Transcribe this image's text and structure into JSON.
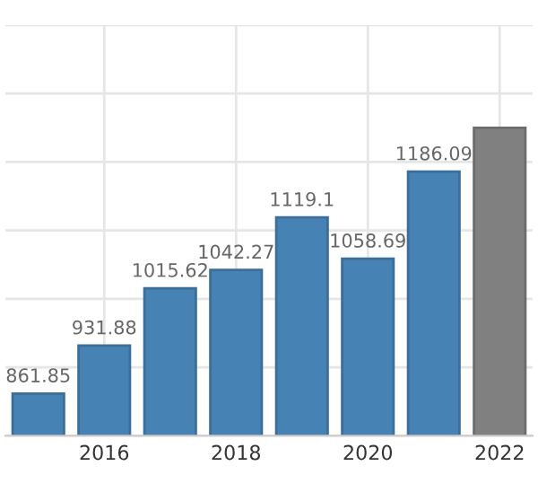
{
  "chart_data": {
    "type": "bar",
    "x": [
      2015,
      2016,
      2017,
      2018,
      2019,
      2020,
      2021,
      2022
    ],
    "values": [
      861.85,
      931.88,
      1015.62,
      1042.27,
      1119.1,
      1058.69,
      1186.09,
      1250
    ],
    "colors": [
      "#4682b4",
      "#4682b4",
      "#4682b4",
      "#4682b4",
      "#4682b4",
      "#4682b4",
      "#4682b4",
      "#808080"
    ],
    "value_labels": [
      "861.85",
      "931.88",
      "1015.62",
      "1042.27",
      "1119.1",
      "1058.69",
      "1186.09",
      null
    ],
    "xlim": [
      2014.5,
      2022.5
    ],
    "xticks": [
      2016,
      2018,
      2020,
      2022
    ],
    "ylim": [
      800,
      1400
    ],
    "yticks": [
      {
        "value": 800,
        "label": null
      },
      {
        "value": 900,
        "label": null
      },
      {
        "value": 1000,
        "label": null
      },
      {
        "value": 1100,
        "label": null
      },
      {
        "value": 1200,
        "label": null
      },
      {
        "value": 1300,
        "label": null
      },
      {
        "value": 1400,
        "label": null
      }
    ],
    "tick_labels": "x",
    "grid": true
  }
}
